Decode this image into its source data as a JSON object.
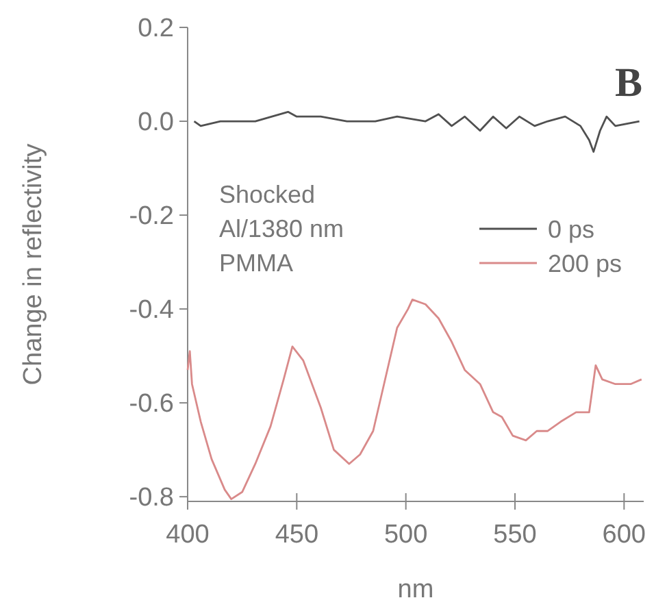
{
  "chart_data": {
    "type": "line",
    "xlabel": "nm",
    "ylabel": "Change in reflectivity",
    "xlim": [
      400,
      609
    ],
    "ylim": [
      -0.81,
      0.2
    ],
    "xticks": [
      400,
      450,
      500,
      550,
      600
    ],
    "yticks": [
      {
        "value": 0.2,
        "label": "0.2"
      },
      {
        "value": 0,
        "label": "0.0"
      },
      {
        "value": -0.2,
        "label": "-0.2"
      },
      {
        "value": -0.4,
        "label": "-0.4"
      },
      {
        "value": -0.6,
        "label": "-0.6"
      },
      {
        "value": -0.8,
        "label": "-0.8"
      }
    ],
    "grid": false,
    "legend": "right",
    "legend_title": "Shocked\nAl/1380 nm\nPMMA",
    "annotations": [
      "B"
    ],
    "series": [
      {
        "name": "0 ps",
        "color": "#505050",
        "x": [
          403,
          406,
          415,
          431,
          446,
          450,
          461,
          473,
          486,
          496,
          509,
          515,
          521,
          527,
          534,
          540,
          546,
          552,
          559,
          565,
          573,
          580,
          584,
          586,
          589,
          592,
          596,
          607
        ],
        "values": [
          0,
          -0.01,
          0,
          0,
          0.02,
          0.01,
          0.01,
          0,
          0,
          0.01,
          0,
          0.015,
          -0.01,
          0.01,
          -0.02,
          0.01,
          -0.015,
          0.01,
          -0.01,
          0,
          0.01,
          -0.01,
          -0.04,
          -0.065,
          -0.02,
          0.01,
          -0.01,
          0
        ]
      },
      {
        "name": "200 ps",
        "color": "#d98a8a",
        "x": [
          400,
          401,
          402,
          406,
          411,
          417,
          420,
          425,
          431,
          438,
          444,
          448,
          453,
          461,
          467,
          474,
          479,
          485,
          490,
          496,
          501,
          503,
          509,
          515,
          521,
          527,
          534,
          540,
          544,
          549,
          555,
          560,
          565,
          571,
          578,
          584,
          587,
          590,
          596,
          603,
          608
        ],
        "values": [
          -0.53,
          -0.49,
          -0.56,
          -0.64,
          -0.72,
          -0.785,
          -0.805,
          -0.79,
          -0.73,
          -0.65,
          -0.55,
          -0.48,
          -0.51,
          -0.61,
          -0.7,
          -0.73,
          -0.71,
          -0.66,
          -0.56,
          -0.44,
          -0.4,
          -0.38,
          -0.39,
          -0.42,
          -0.47,
          -0.53,
          -0.56,
          -0.62,
          -0.63,
          -0.67,
          -0.68,
          -0.66,
          -0.66,
          -0.64,
          -0.62,
          -0.62,
          -0.52,
          -0.55,
          -0.56,
          -0.56,
          -0.55
        ]
      }
    ]
  }
}
